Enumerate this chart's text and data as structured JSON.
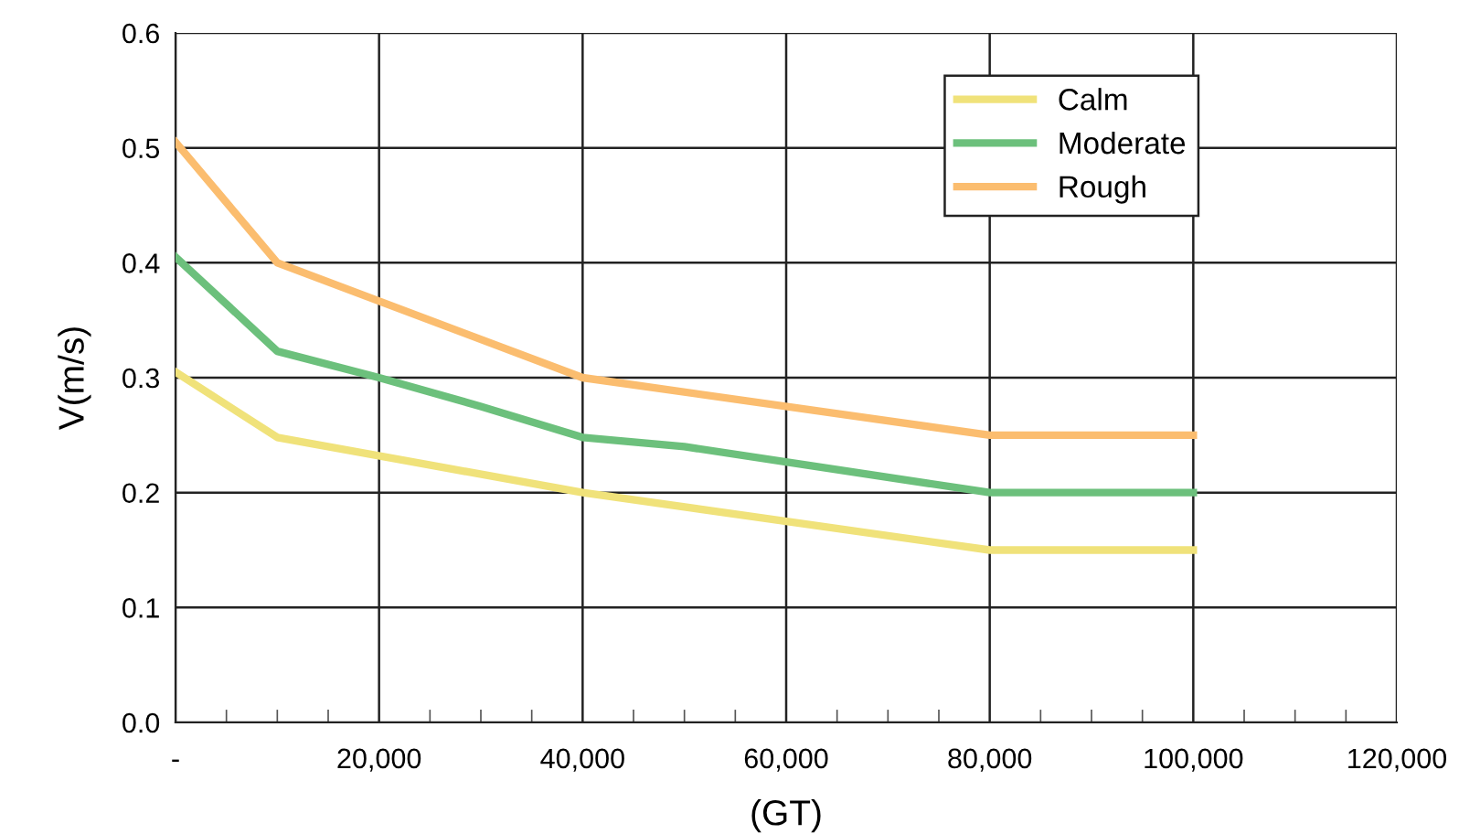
{
  "chart_data": {
    "type": "line",
    "xlabel": "(GT)",
    "ylabel": "V(m/s)",
    "xlim": [
      0,
      120000
    ],
    "ylim": [
      0,
      0.6
    ],
    "xticks": [
      {
        "value": 0,
        "label": "-"
      },
      {
        "value": 20000,
        "label": "20,000"
      },
      {
        "value": 40000,
        "label": "40,000"
      },
      {
        "value": 60000,
        "label": "60,000"
      },
      {
        "value": 80000,
        "label": "80,000"
      },
      {
        "value": 100000,
        "label": "100,000"
      },
      {
        "value": 120000,
        "label": "120,000"
      },
      {
        "value": 5000,
        "label": null
      },
      {
        "value": 10000,
        "label": null
      },
      {
        "value": 15000,
        "label": null
      },
      {
        "value": 25000,
        "label": null
      },
      {
        "value": 30000,
        "label": null
      },
      {
        "value": 35000,
        "label": null
      },
      {
        "value": 45000,
        "label": null
      },
      {
        "value": 50000,
        "label": null
      },
      {
        "value": 55000,
        "label": null
      },
      {
        "value": 65000,
        "label": null
      },
      {
        "value": 70000,
        "label": null
      },
      {
        "value": 75000,
        "label": null
      },
      {
        "value": 85000,
        "label": null
      },
      {
        "value": 90000,
        "label": null
      },
      {
        "value": 95000,
        "label": null
      },
      {
        "value": 105000,
        "label": null
      },
      {
        "value": 110000,
        "label": null
      },
      {
        "value": 115000,
        "label": null
      }
    ],
    "yticks": [
      {
        "value": 0,
        "label": "0.0"
      },
      {
        "value": 0.1,
        "label": "0.1"
      },
      {
        "value": 0.2,
        "label": "0.2"
      },
      {
        "value": 0.3,
        "label": "0.3"
      },
      {
        "value": 0.4,
        "label": "0.4"
      },
      {
        "value": 0.5,
        "label": "0.5"
      },
      {
        "value": 0.6,
        "label": "0.6"
      }
    ],
    "grid": true,
    "legend": "top right",
    "marker": "none",
    "line_style": "solid",
    "series": [
      {
        "name": "Calm",
        "color": "#f0e27a",
        "x": [
          0,
          10000,
          40000,
          80000,
          100000
        ],
        "values": [
          0.305,
          0.248,
          0.2,
          0.15,
          0.15
        ]
      },
      {
        "name": "Moderate",
        "color": "#6cc07c",
        "x": [
          0,
          10000,
          20000,
          30000,
          40000,
          50000,
          80000,
          100000
        ],
        "values": [
          0.405,
          0.323,
          0.3,
          0.275,
          0.248,
          0.24,
          0.2,
          0.2
        ]
      },
      {
        "name": "Rough",
        "color": "#fbbd6f",
        "x": [
          0,
          10000,
          40000,
          80000,
          100000
        ],
        "values": [
          0.505,
          0.4,
          0.3,
          0.25,
          0.25
        ]
      }
    ]
  }
}
